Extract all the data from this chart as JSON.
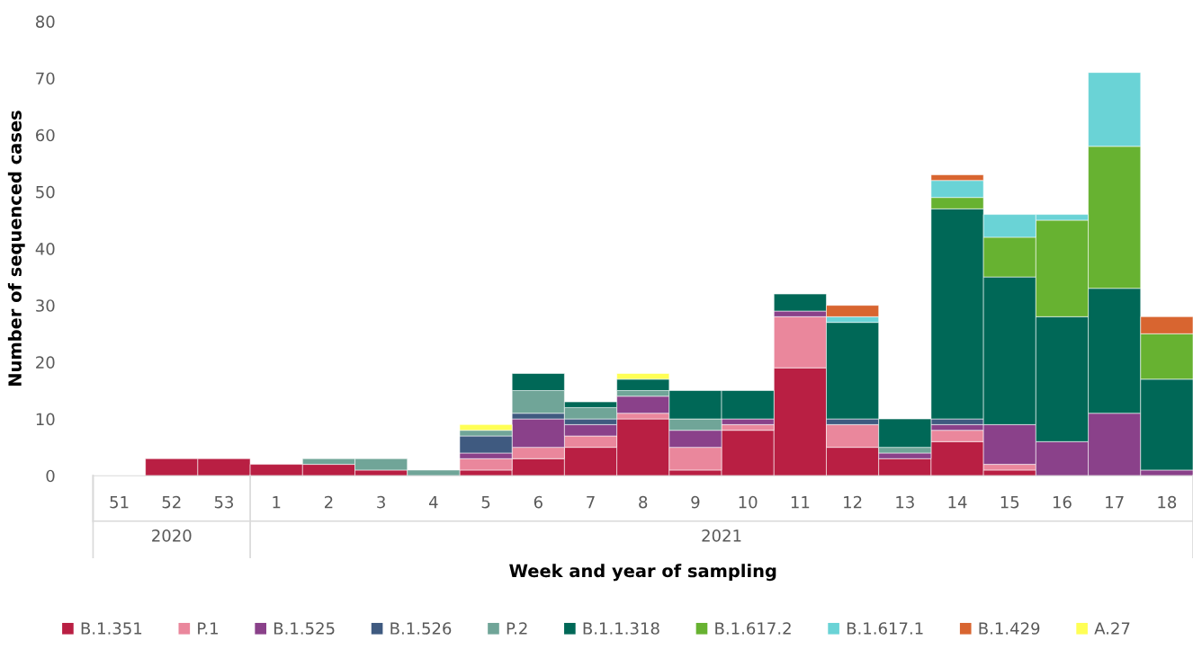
{
  "chart_data": {
    "type": "bar",
    "stacked": true,
    "xlabel": "Week and year of sampling",
    "ylabel": "Number of sequenced cases",
    "categories": [
      "51",
      "52",
      "53",
      "1",
      "2",
      "3",
      "4",
      "5",
      "6",
      "7",
      "8",
      "9",
      "10",
      "11",
      "12",
      "13",
      "14",
      "15",
      "16",
      "17",
      "18"
    ],
    "series": [
      {
        "name": "B.1.351",
        "color": "#b91f43",
        "values": [
          null,
          3,
          3,
          2,
          2,
          1,
          null,
          1,
          3,
          5,
          10,
          1,
          8,
          19,
          5,
          3,
          6,
          1,
          null,
          null,
          null
        ]
      },
      {
        "name": "P.1",
        "color": "#ea879c",
        "values": [
          null,
          null,
          null,
          null,
          null,
          null,
          null,
          2,
          2,
          2,
          1,
          4,
          1,
          9,
          4,
          null,
          2,
          1,
          null,
          null,
          null
        ]
      },
      {
        "name": "B.1.525",
        "color": "#8a418a",
        "values": [
          null,
          null,
          null,
          null,
          null,
          null,
          null,
          1,
          5,
          2,
          3,
          3,
          1,
          1,
          null,
          1,
          1,
          7,
          6,
          11,
          1
        ]
      },
      {
        "name": "B.1.526",
        "color": "#3f5a80",
        "values": [
          null,
          null,
          null,
          null,
          null,
          null,
          null,
          3,
          1,
          1,
          null,
          null,
          null,
          null,
          1,
          null,
          1,
          null,
          null,
          null,
          null
        ]
      },
      {
        "name": "P.2",
        "color": "#70a598",
        "values": [
          null,
          null,
          null,
          null,
          1,
          2,
          1,
          1,
          4,
          2,
          1,
          2,
          null,
          null,
          null,
          1,
          null,
          null,
          null,
          null,
          null
        ]
      },
      {
        "name": "B.1.1.318",
        "color": "#006857",
        "values": [
          null,
          null,
          null,
          null,
          null,
          null,
          null,
          null,
          3,
          1,
          2,
          5,
          5,
          3,
          17,
          5,
          37,
          26,
          22,
          22,
          16
        ]
      },
      {
        "name": "B.1.617.2",
        "color": "#67b231",
        "values": [
          null,
          null,
          null,
          null,
          null,
          null,
          null,
          null,
          null,
          null,
          null,
          null,
          null,
          null,
          null,
          null,
          2,
          7,
          17,
          25,
          8
        ]
      },
      {
        "name": "B.1.617.1",
        "color": "#6ad3d6",
        "values": [
          null,
          null,
          null,
          null,
          null,
          null,
          null,
          null,
          null,
          null,
          null,
          null,
          null,
          null,
          1,
          null,
          3,
          4,
          1,
          13,
          null
        ]
      },
      {
        "name": "B.1.429",
        "color": "#d86530",
        "values": [
          null,
          null,
          null,
          null,
          null,
          null,
          null,
          null,
          null,
          null,
          null,
          null,
          null,
          null,
          2,
          null,
          1,
          null,
          null,
          null,
          3
        ]
      },
      {
        "name": "A.27",
        "color": "#ffff55",
        "values": [
          null,
          null,
          null,
          null,
          null,
          null,
          null,
          1,
          null,
          null,
          1,
          null,
          null,
          null,
          null,
          null,
          null,
          null,
          null,
          null,
          null
        ]
      }
    ],
    "annotations": [
      "2020",
      "2021"
    ],
    "ylim": [
      0,
      80
    ],
    "yticks": [
      0,
      10,
      20,
      30,
      40,
      50,
      60,
      70,
      80
    ],
    "grid": false,
    "legend": "bottom"
  }
}
